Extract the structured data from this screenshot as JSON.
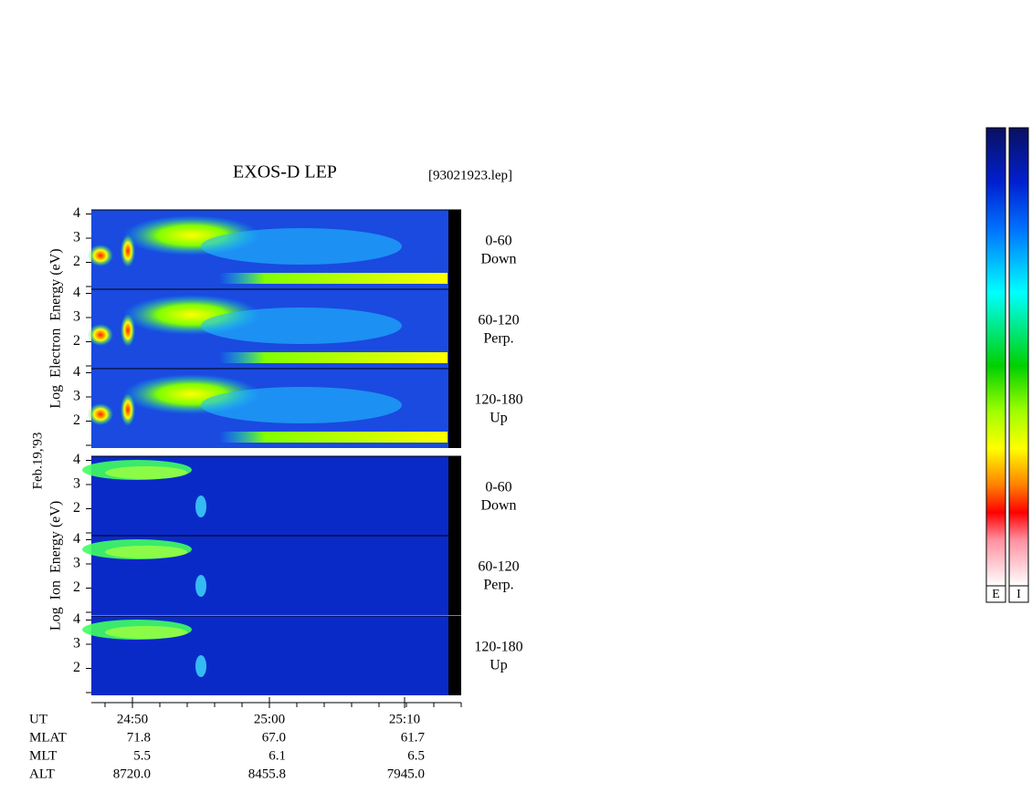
{
  "title": "EXOS-D LEP",
  "file": "[93021923.lep]",
  "date": "Feb.19,'93",
  "electron_label": "Log  Electron  Energy (eV)",
  "ion_label": "Log  Ion  Energy (eV)",
  "energy_ticks": [
    "2",
    "3",
    "4"
  ],
  "electron_panels": [
    {
      "angle": "0-60",
      "direction": "Down"
    },
    {
      "angle": "60-120",
      "direction": "Perp."
    },
    {
      "angle": "120-180",
      "direction": "Up"
    }
  ],
  "ion_panels": [
    {
      "angle": "0-60",
      "direction": "Down"
    },
    {
      "angle": "60-120",
      "direction": "Perp."
    },
    {
      "angle": "120-180",
      "direction": "Up"
    }
  ],
  "orbit_table": {
    "rows": [
      [
        "UT",
        "24:50",
        "25:00",
        "25:10"
      ],
      [
        "MLAT",
        "71.8",
        "67.0",
        "61.7"
      ],
      [
        "MLT",
        "5.5",
        "6.1",
        "6.5"
      ],
      [
        "ALT",
        "8720.0",
        "8455.8",
        "7945.0"
      ]
    ]
  },
  "colorbars": [
    "E",
    "I"
  ]
}
